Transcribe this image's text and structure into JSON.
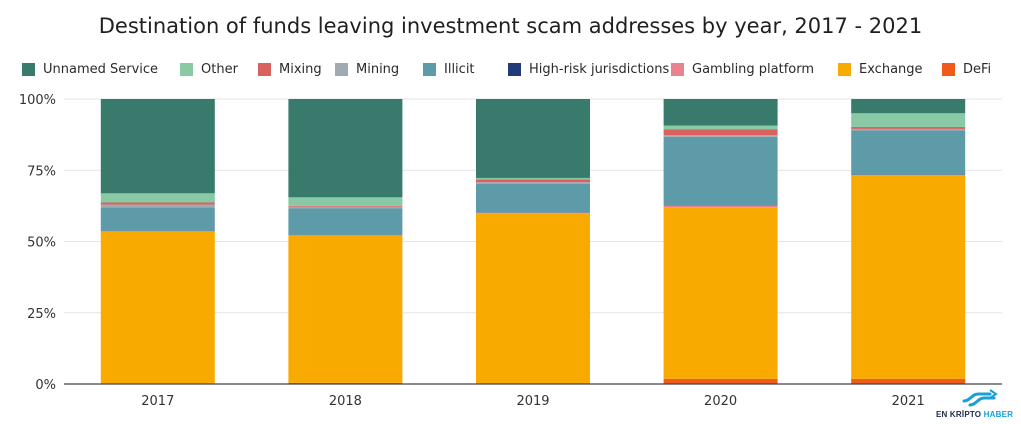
{
  "title": "Destination of funds leaving investment scam addresses by year, 2017 - 2021",
  "chart_data": {
    "type": "bar",
    "stacked": true,
    "title": "Destination of funds leaving investment scam addresses by year, 2017 - 2021",
    "categories": [
      "2017",
      "2018",
      "2019",
      "2020",
      "2021"
    ],
    "ylim": [
      0,
      100
    ],
    "yticks": [
      "0%",
      "25%",
      "50%",
      "75%",
      "100%"
    ],
    "legend_placement": "top",
    "grid": true,
    "series": [
      {
        "name": "DeFi",
        "color": "#f05a1a",
        "values": [
          0.2,
          0.4,
          0.3,
          1.8,
          1.8
        ]
      },
      {
        "name": "Exchange",
        "color": "#f8aa00",
        "values": [
          53.3,
          51.7,
          59.6,
          60.2,
          71.3
        ]
      },
      {
        "name": "Gambling platform",
        "color": "#e8838f",
        "values": [
          0.2,
          0.2,
          0.2,
          0.7,
          0.3
        ]
      },
      {
        "name": "High-risk jurisdictions",
        "color": "#233a79",
        "values": [
          0.1,
          0.1,
          0.1,
          0.2,
          0.1
        ]
      },
      {
        "name": "Illicit",
        "color": "#5e9ba8",
        "values": [
          8.2,
          9.3,
          10.1,
          23.8,
          15.5
        ]
      },
      {
        "name": "Mining",
        "color": "#a1a9b1",
        "values": [
          1.0,
          0.5,
          0.5,
          0.6,
          0.5
        ]
      },
      {
        "name": "Mixing",
        "color": "#d9625e",
        "values": [
          0.7,
          0.3,
          1.0,
          2.0,
          0.7
        ]
      },
      {
        "name": "Other",
        "color": "#89c9a5",
        "values": [
          3.2,
          3.0,
          0.5,
          1.4,
          4.8
        ]
      },
      {
        "name": "Unnamed Service",
        "color": "#387a6b",
        "values": [
          33.1,
          34.5,
          27.7,
          9.3,
          5.0
        ]
      }
    ],
    "legend_order": [
      "Unnamed Service",
      "Other",
      "Mixing",
      "Mining",
      "Illicit",
      "High-risk jurisdictions",
      "Gambling platform",
      "Exchange",
      "DeFi"
    ]
  },
  "logo": {
    "text_a": "EN KRİPTO",
    "text_b": "HABER",
    "color": "#1aa0d8"
  }
}
